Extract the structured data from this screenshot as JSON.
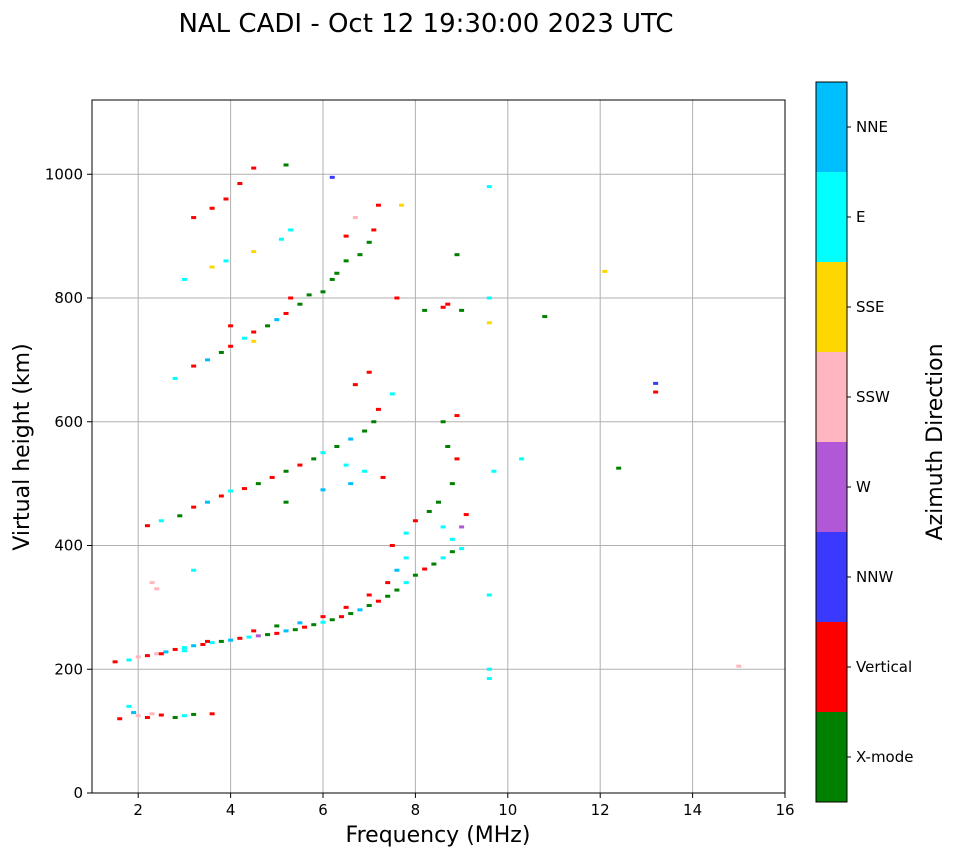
{
  "chart_data": {
    "type": "scatter",
    "title": "NAL CADI - Oct 12 19:30:00 2023 UTC",
    "xlabel": "Frequency (MHz)",
    "ylabel": "Virtual height (km)",
    "xlim": [
      1,
      16
    ],
    "ylim": [
      0,
      1120
    ],
    "xticks": [
      2,
      4,
      6,
      8,
      10,
      12,
      14,
      16
    ],
    "yticks": [
      0,
      200,
      400,
      600,
      800,
      1000
    ],
    "grid": true,
    "colorbar": {
      "label": "Azimuth Direction",
      "categories": [
        {
          "name": "X-mode",
          "color": "#008000"
        },
        {
          "name": "Vertical",
          "color": "#ff0000"
        },
        {
          "name": "NNW",
          "color": "#3a3aff"
        },
        {
          "name": "W",
          "color": "#b158d6"
        },
        {
          "name": "SSW",
          "color": "#ffb6c1"
        },
        {
          "name": "SSE",
          "color": "#ffd700"
        },
        {
          "name": "E",
          "color": "#00ffff"
        },
        {
          "name": "NNE",
          "color": "#00bfff"
        }
      ]
    },
    "points": [
      [
        1.6,
        120,
        "Vertical"
      ],
      [
        1.8,
        140,
        "E"
      ],
      [
        1.9,
        130,
        "NNE"
      ],
      [
        2.0,
        125,
        "SSW"
      ],
      [
        2.2,
        122,
        "Vertical"
      ],
      [
        2.3,
        128,
        "SSW"
      ],
      [
        2.5,
        126,
        "Vertical"
      ],
      [
        2.8,
        122,
        "X-mode"
      ],
      [
        3.0,
        125,
        "E"
      ],
      [
        3.2,
        127,
        "X-mode"
      ],
      [
        3.6,
        128,
        "Vertical"
      ],
      [
        2.4,
        330,
        "SSW"
      ],
      [
        2.3,
        340,
        "SSW"
      ],
      [
        3.2,
        360,
        "E"
      ],
      [
        1.5,
        212,
        "Vertical"
      ],
      [
        1.8,
        215,
        "E"
      ],
      [
        2.0,
        220,
        "SSW"
      ],
      [
        2.2,
        222,
        "Vertical"
      ],
      [
        2.4,
        225,
        "SSW"
      ],
      [
        2.6,
        228,
        "NNE"
      ],
      [
        2.8,
        232,
        "Vertical"
      ],
      [
        3.0,
        235,
        "E"
      ],
      [
        3.2,
        238,
        "NNE"
      ],
      [
        3.4,
        240,
        "Vertical"
      ],
      [
        3.6,
        243,
        "E"
      ],
      [
        3.8,
        245,
        "X-mode"
      ],
      [
        4.0,
        247,
        "NNE"
      ],
      [
        4.2,
        250,
        "Vertical"
      ],
      [
        4.4,
        252,
        "E"
      ],
      [
        4.6,
        254,
        "W"
      ],
      [
        4.8,
        256,
        "X-mode"
      ],
      [
        5.0,
        258,
        "Vertical"
      ],
      [
        5.2,
        262,
        "NNE"
      ],
      [
        5.4,
        264,
        "X-mode"
      ],
      [
        5.6,
        268,
        "Vertical"
      ],
      [
        5.8,
        272,
        "X-mode"
      ],
      [
        6.0,
        276,
        "E"
      ],
      [
        6.2,
        280,
        "X-mode"
      ],
      [
        6.4,
        285,
        "Vertical"
      ],
      [
        6.6,
        290,
        "X-mode"
      ],
      [
        6.8,
        296,
        "NNE"
      ],
      [
        7.0,
        303,
        "X-mode"
      ],
      [
        7.2,
        310,
        "Vertical"
      ],
      [
        7.4,
        318,
        "X-mode"
      ],
      [
        7.6,
        328,
        "X-mode"
      ],
      [
        7.8,
        340,
        "E"
      ],
      [
        8.0,
        352,
        "X-mode"
      ],
      [
        8.2,
        362,
        "Vertical"
      ],
      [
        8.4,
        370,
        "X-mode"
      ],
      [
        8.6,
        380,
        "E"
      ],
      [
        8.8,
        390,
        "X-mode"
      ],
      [
        9.0,
        395,
        "E"
      ],
      [
        2.5,
        225,
        "Vertical"
      ],
      [
        3.0,
        230,
        "E"
      ],
      [
        3.5,
        245,
        "Vertical"
      ],
      [
        4.5,
        262,
        "Vertical"
      ],
      [
        5.0,
        270,
        "X-mode"
      ],
      [
        5.5,
        275,
        "NNE"
      ],
      [
        6.0,
        285,
        "Vertical"
      ],
      [
        6.5,
        300,
        "Vertical"
      ],
      [
        7.0,
        320,
        "Vertical"
      ],
      [
        7.4,
        340,
        "Vertical"
      ],
      [
        7.6,
        360,
        "NNE"
      ],
      [
        7.8,
        380,
        "E"
      ],
      [
        7.5,
        400,
        "Vertical"
      ],
      [
        7.8,
        420,
        "E"
      ],
      [
        8.0,
        440,
        "Vertical"
      ],
      [
        8.3,
        455,
        "X-mode"
      ],
      [
        8.5,
        470,
        "X-mode"
      ],
      [
        8.6,
        430,
        "E"
      ],
      [
        8.8,
        410,
        "E"
      ],
      [
        9.0,
        430,
        "W"
      ],
      [
        9.1,
        450,
        "Vertical"
      ],
      [
        8.8,
        500,
        "X-mode"
      ],
      [
        8.9,
        540,
        "Vertical"
      ],
      [
        8.7,
        560,
        "X-mode"
      ],
      [
        8.9,
        610,
        "Vertical"
      ],
      [
        8.6,
        600,
        "X-mode"
      ],
      [
        9.6,
        320,
        "E"
      ],
      [
        9.6,
        200,
        "E"
      ],
      [
        9.6,
        185,
        "E"
      ],
      [
        15.0,
        205,
        "SSW"
      ],
      [
        2.2,
        432,
        "Vertical"
      ],
      [
        2.5,
        440,
        "E"
      ],
      [
        2.9,
        448,
        "X-mode"
      ],
      [
        3.2,
        462,
        "Vertical"
      ],
      [
        3.5,
        470,
        "NNE"
      ],
      [
        3.8,
        480,
        "Vertical"
      ],
      [
        4.0,
        488,
        "E"
      ],
      [
        4.3,
        492,
        "Vertical"
      ],
      [
        4.6,
        500,
        "X-mode"
      ],
      [
        4.9,
        510,
        "Vertical"
      ],
      [
        5.2,
        520,
        "X-mode"
      ],
      [
        5.5,
        530,
        "Vertical"
      ],
      [
        5.8,
        540,
        "X-mode"
      ],
      [
        6.0,
        550,
        "E"
      ],
      [
        6.3,
        560,
        "X-mode"
      ],
      [
        6.6,
        572,
        "NNE"
      ],
      [
        6.9,
        585,
        "X-mode"
      ],
      [
        7.1,
        600,
        "X-mode"
      ],
      [
        7.2,
        620,
        "Vertical"
      ],
      [
        7.5,
        645,
        "E"
      ],
      [
        6.5,
        530,
        "E"
      ],
      [
        6.9,
        520,
        "E"
      ],
      [
        6.6,
        500,
        "NNE"
      ],
      [
        7.3,
        510,
        "Vertical"
      ],
      [
        6.0,
        490,
        "NNE"
      ],
      [
        5.2,
        470,
        "X-mode"
      ],
      [
        6.7,
        660,
        "Vertical"
      ],
      [
        7.0,
        680,
        "Vertical"
      ],
      [
        9.7,
        520,
        "E"
      ],
      [
        10.3,
        540,
        "E"
      ],
      [
        12.4,
        525,
        "X-mode"
      ],
      [
        13.2,
        662,
        "NNW"
      ],
      [
        13.2,
        648,
        "Vertical"
      ],
      [
        2.8,
        670,
        "E"
      ],
      [
        3.2,
        690,
        "Vertical"
      ],
      [
        3.5,
        700,
        "NNE"
      ],
      [
        3.8,
        712,
        "X-mode"
      ],
      [
        4.0,
        722,
        "Vertical"
      ],
      [
        4.3,
        735,
        "E"
      ],
      [
        4.5,
        745,
        "Vertical"
      ],
      [
        4.8,
        755,
        "X-mode"
      ],
      [
        5.0,
        765,
        "NNE"
      ],
      [
        5.2,
        775,
        "Vertical"
      ],
      [
        5.5,
        790,
        "X-mode"
      ],
      [
        5.7,
        805,
        "X-mode"
      ],
      [
        4.0,
        755,
        "Vertical"
      ],
      [
        4.5,
        730,
        "SSE"
      ],
      [
        5.3,
        800,
        "Vertical"
      ],
      [
        3.0,
        830,
        "E"
      ],
      [
        3.6,
        850,
        "SSE"
      ],
      [
        3.9,
        860,
        "E"
      ],
      [
        4.5,
        875,
        "SSE"
      ],
      [
        5.1,
        895,
        "E"
      ],
      [
        5.3,
        910,
        "E"
      ],
      [
        6.0,
        810,
        "X-mode"
      ],
      [
        6.3,
        840,
        "X-mode"
      ],
      [
        6.5,
        860,
        "X-mode"
      ],
      [
        6.8,
        870,
        "X-mode"
      ],
      [
        7.0,
        890,
        "X-mode"
      ],
      [
        6.5,
        900,
        "Vertical"
      ],
      [
        6.7,
        930,
        "SSW"
      ],
      [
        7.1,
        910,
        "Vertical"
      ],
      [
        7.7,
        950,
        "SSE"
      ],
      [
        6.2,
        830,
        "X-mode"
      ],
      [
        7.6,
        800,
        "Vertical"
      ],
      [
        8.2,
        780,
        "X-mode"
      ],
      [
        8.6,
        785,
        "Vertical"
      ],
      [
        9.0,
        780,
        "X-mode"
      ],
      [
        8.7,
        790,
        "Vertical"
      ],
      [
        9.6,
        760,
        "SSE"
      ],
      [
        9.6,
        800,
        "E"
      ],
      [
        10.8,
        770,
        "X-mode"
      ],
      [
        12.1,
        843,
        "SSE"
      ],
      [
        8.9,
        870,
        "X-mode"
      ],
      [
        9.6,
        980,
        "E"
      ],
      [
        3.2,
        930,
        "Vertical"
      ],
      [
        3.6,
        945,
        "Vertical"
      ],
      [
        3.9,
        960,
        "Vertical"
      ],
      [
        4.2,
        985,
        "Vertical"
      ],
      [
        4.5,
        1010,
        "Vertical"
      ],
      [
        5.2,
        1015,
        "X-mode"
      ],
      [
        6.2,
        995,
        "NNW"
      ],
      [
        7.2,
        950,
        "Vertical"
      ]
    ]
  }
}
